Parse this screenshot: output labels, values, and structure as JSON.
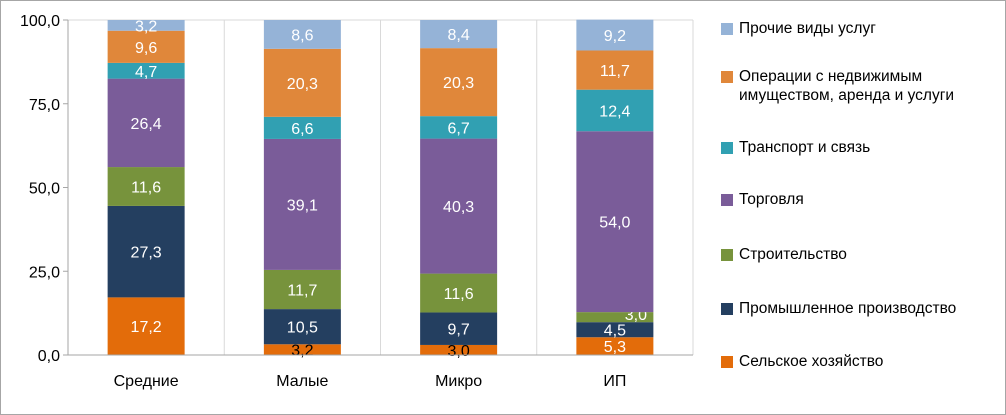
{
  "chart_data": {
    "type": "bar",
    "stacked": true,
    "categories": [
      "Средние",
      "Малые",
      "Микро",
      "ИП"
    ],
    "series": [
      {
        "name": "Сельское хозяйство",
        "color": "#E36C0A",
        "values": [
          17.2,
          3.2,
          3.0,
          5.3
        ],
        "labels": [
          "17,2",
          "3,2",
          "3,0",
          "5,3"
        ]
      },
      {
        "name": "Промышленное производство",
        "color": "#243F60",
        "values": [
          27.3,
          10.5,
          9.7,
          4.5
        ],
        "labels": [
          "27,3",
          "10,5",
          "9,7",
          "4,5"
        ]
      },
      {
        "name": "Строительство",
        "color": "#77933C",
        "values": [
          11.6,
          11.7,
          11.6,
          3.0
        ],
        "labels": [
          "11,6",
          "11,7",
          "11,6",
          "3,0"
        ]
      },
      {
        "name": "Торговля",
        "color": "#7A5C99",
        "values": [
          26.4,
          39.1,
          40.3,
          54.0
        ],
        "labels": [
          "26,4",
          "39,1",
          "40,3",
          "54,0"
        ]
      },
      {
        "name": "Транспорт и связь",
        "color": "#31A0B2",
        "values": [
          4.7,
          6.6,
          6.7,
          12.4
        ],
        "labels": [
          "4,7",
          "6,6",
          "6,7",
          "12,4"
        ]
      },
      {
        "name": "Операции с недвижимым имуществом, аренда и услуги",
        "color": "#E0873A",
        "values": [
          9.6,
          20.3,
          20.3,
          11.7
        ],
        "labels": [
          "9,6",
          "20,3",
          "20,3",
          "11,7"
        ]
      },
      {
        "name": "Прочие виды услуг",
        "color": "#95B3D7",
        "values": [
          3.2,
          8.6,
          8.4,
          9.2
        ],
        "labels": [
          "3,2",
          "8,6",
          "8,4",
          "9,2"
        ]
      }
    ],
    "y_ticks": [
      0,
      25,
      50,
      75,
      100
    ],
    "y_tick_labels": [
      "0,0",
      "25,0",
      "50,0",
      "75,0",
      "100,0"
    ],
    "ylim": [
      0,
      100
    ],
    "grid": true,
    "legend_position": "right"
  },
  "legend": {
    "items": [
      {
        "lines": [
          "Прочие виды услуг"
        ],
        "color": "#95B3D7"
      },
      {
        "lines": [
          "Операции с недвижимым",
          "имуществом, аренда и услуги"
        ],
        "color": "#E0873A"
      },
      {
        "lines": [
          "Транспорт и связь"
        ],
        "color": "#31A0B2"
      },
      {
        "lines": [
          "Торговля"
        ],
        "color": "#7A5C99"
      },
      {
        "lines": [
          "Строительство"
        ],
        "color": "#77933C"
      },
      {
        "lines": [
          "Промышленное производство"
        ],
        "color": "#243F60"
      },
      {
        "lines": [
          "Сельское хозяйство"
        ],
        "color": "#E36C0A"
      }
    ]
  }
}
